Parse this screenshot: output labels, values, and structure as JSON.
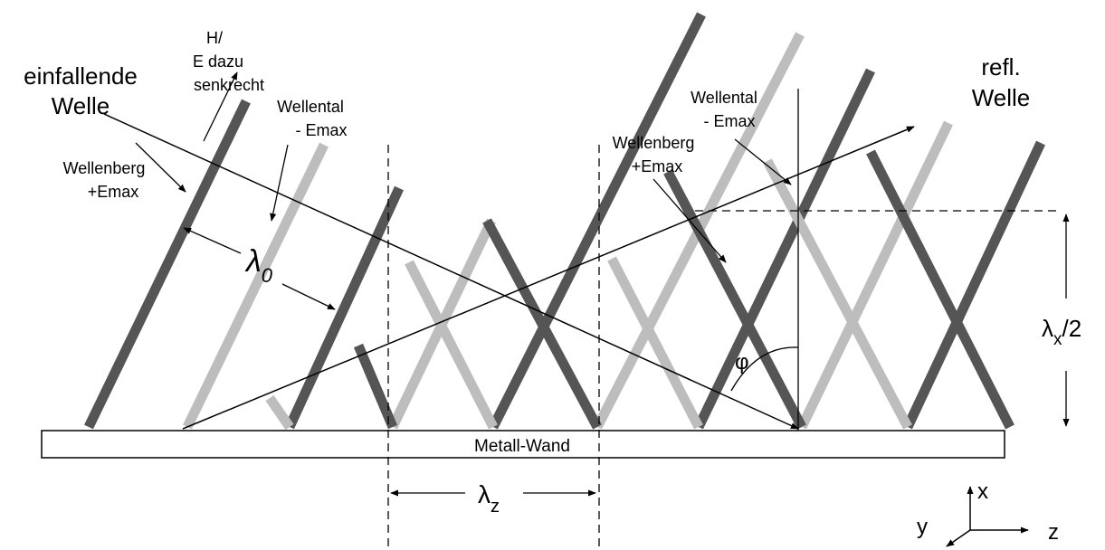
{
  "labels": {
    "incident_line1": "einfallende",
    "incident_line2": "Welle",
    "reflected_line1": "refl.",
    "reflected_line2": "Welle",
    "h_line1": "H/",
    "h_line2": "E dazu",
    "h_line3": "senkrecht",
    "wellental_left_line1": "Wellental",
    "wellental_left_line2": "- Emax",
    "wellenberg_left_line1": "Wellenberg",
    "wellenberg_left_line2": "+Emax",
    "wellental_right_line1": "Wellental",
    "wellental_right_line2": "- Emax",
    "wellenberg_right_line1": "Wellenberg",
    "wellenberg_right_line2": "+Emax",
    "lambda0_symbol": "λ",
    "lambda0_sub": "0",
    "lambdaz_symbol": "λ",
    "lambdaz_sub": "z",
    "lambdax_symbol": "λ",
    "lambdax_sub": "x",
    "lambdax_suffix": "/2",
    "phi": "φ",
    "wall": "Metall-Wand",
    "axis_x": "x",
    "axis_y": "y",
    "axis_z": "z"
  },
  "colors": {
    "crest_dark": "#555555",
    "trough_light": "#bdbdbd",
    "line": "#000000",
    "wall_fill": "#ffffff"
  }
}
